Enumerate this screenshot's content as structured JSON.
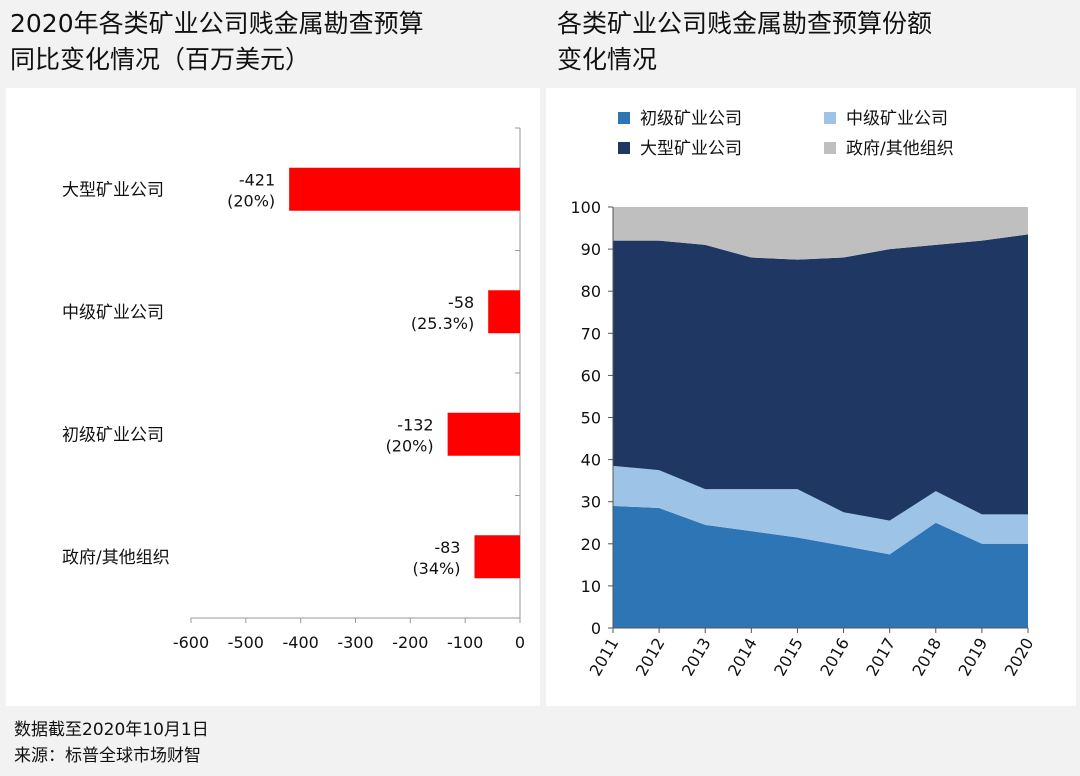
{
  "left_title": {
    "line1": "2020年各类矿业公司贱金属勘查预算",
    "line2": "同比变化情况（百万美元）"
  },
  "right_title": {
    "line1": "各类矿业公司贱金属勘查预算份额",
    "line2": "变化情况"
  },
  "footer": {
    "note": "数据截至2020年10月1日",
    "source": "来源：标普全球市场财智"
  },
  "colors": {
    "bar": "#ff0000",
    "junior": "#2e75b6",
    "intermediate": "#9dc3e6",
    "major": "#1f3763",
    "government_other": "#bfbfbf",
    "background": "#f2f2f2",
    "panel": "#ffffff"
  },
  "chart_data": [
    {
      "type": "bar",
      "orientation": "horizontal",
      "categories": [
        "大型矿业公司",
        "中级矿业公司",
        "初级矿业公司",
        "政府/其他组织"
      ],
      "values": [
        -421,
        -58,
        -132,
        -83
      ],
      "value_labels": [
        "-421",
        "-58",
        "-132",
        "-83"
      ],
      "percent_labels": [
        "(20%)",
        "(25.3%)",
        "(20%)",
        "(34%)"
      ],
      "xlim": [
        -600,
        0
      ],
      "xticks": [
        -600,
        -500,
        -400,
        -300,
        -200,
        -100,
        0
      ],
      "xtick_labels": [
        "-600",
        "-500",
        "-400",
        "-300",
        "-200",
        "-100",
        "0"
      ]
    },
    {
      "type": "area",
      "stacked": true,
      "x": [
        "2011",
        "2012",
        "2013",
        "2014",
        "2015",
        "2016",
        "2017",
        "2018",
        "2019",
        "2020"
      ],
      "ylim": [
        0,
        100
      ],
      "yticks": [
        "0",
        "10",
        "20",
        "30",
        "40",
        "50",
        "60",
        "70",
        "80",
        "90",
        "100"
      ],
      "legend_position": "top",
      "series": [
        {
          "name": "初级矿业公司",
          "color_key": "junior",
          "values": [
            29,
            28.5,
            24.5,
            23,
            21.5,
            19.5,
            17.5,
            25,
            20,
            20
          ]
        },
        {
          "name": "中级矿业公司",
          "color_key": "intermediate",
          "values": [
            9.5,
            9,
            8.5,
            10,
            11.5,
            8,
            8,
            7.5,
            7,
            7
          ]
        },
        {
          "name": "大型矿业公司",
          "color_key": "major",
          "values": [
            53.5,
            54.5,
            58,
            55,
            54.5,
            60.5,
            64.5,
            58.5,
            65,
            66.5
          ]
        },
        {
          "name": "政府/其他组织",
          "color_key": "government_other",
          "values": [
            8,
            8,
            9,
            12,
            12.5,
            12,
            10,
            9,
            8,
            6.5
          ]
        }
      ]
    }
  ]
}
